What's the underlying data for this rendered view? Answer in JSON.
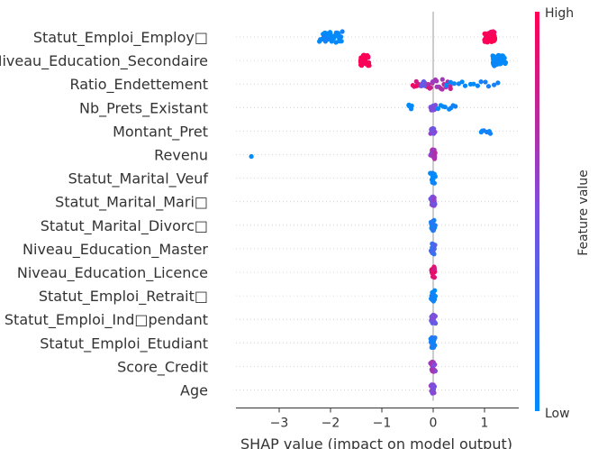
{
  "chart_data": {
    "type": "scatter",
    "subtype": "shap-beeswarm",
    "title": "",
    "xlabel": "SHAP value (impact on model output)",
    "xlim": [
      -3.7,
      1.7
    ],
    "x_ticks": [
      "−3",
      "−2",
      "−1",
      "0",
      "1"
    ],
    "x_tick_values": [
      -3,
      -2,
      -1,
      0,
      1
    ],
    "colorbar": {
      "label": "Feature value",
      "high": "High",
      "low": "Low"
    },
    "colors": {
      "low": "#008bfb",
      "high": "#ff0052"
    },
    "features": [
      {
        "name": "Statut_Emploi_Employ□",
        "groups": [
          {
            "min": -2.2,
            "max": -1.77,
            "n": 40,
            "level": 0.0
          },
          {
            "min": 1.0,
            "max": 1.2,
            "n": 50,
            "level": 1.0
          }
        ]
      },
      {
        "name": "Niveau_Education_Secondaire",
        "groups": [
          {
            "min": -1.42,
            "max": -1.25,
            "n": 45,
            "level": 1.0
          },
          {
            "min": 1.15,
            "max": 1.4,
            "n": 45,
            "level": 0.0
          }
        ]
      },
      {
        "name": "Ratio_Endettement",
        "groups": [
          {
            "min": -0.4,
            "max": -0.1,
            "n": 12,
            "level": 0.9
          },
          {
            "min": -0.22,
            "max": -0.15,
            "n": 10,
            "level": 0.4
          },
          {
            "min": -0.1,
            "max": 0.35,
            "n": 18,
            "level": 0.7
          },
          {
            "min": 0.25,
            "max": 1.25,
            "n": 14,
            "level": 0.05
          }
        ]
      },
      {
        "name": "Nb_Prets_Existant",
        "groups": [
          {
            "min": -0.47,
            "max": -0.43,
            "n": 6,
            "level": 0.0
          },
          {
            "min": -0.05,
            "max": 0.03,
            "n": 14,
            "level": 0.45
          },
          {
            "min": 0.1,
            "max": 0.45,
            "n": 8,
            "level": 0.05
          }
        ]
      },
      {
        "name": "Montant_Pret",
        "groups": [
          {
            "min": -0.04,
            "max": 0.02,
            "n": 14,
            "level": 0.5
          },
          {
            "min": 0.92,
            "max": 1.12,
            "n": 6,
            "level": 0.05
          }
        ]
      },
      {
        "name": "Revenu",
        "groups": [
          {
            "min": -3.55,
            "max": -3.53,
            "n": 1,
            "level": 0.0
          },
          {
            "min": -0.04,
            "max": 0.03,
            "n": 18,
            "level": 0.65
          }
        ]
      },
      {
        "name": "Statut_Marital_Veuf",
        "groups": [
          {
            "min": -0.04,
            "max": 0.03,
            "n": 18,
            "level": 0.0
          }
        ]
      },
      {
        "name": "Statut_Marital_Mari□",
        "groups": [
          {
            "min": -0.04,
            "max": 0.03,
            "n": 18,
            "level": 0.5
          }
        ]
      },
      {
        "name": "Statut_Marital_Divorc□",
        "groups": [
          {
            "min": -0.04,
            "max": 0.03,
            "n": 18,
            "level": 0.1
          }
        ]
      },
      {
        "name": "Niveau_Education_Master",
        "groups": [
          {
            "min": -0.04,
            "max": 0.03,
            "n": 18,
            "level": 0.25
          }
        ]
      },
      {
        "name": "Niveau_Education_Licence",
        "groups": [
          {
            "min": -0.04,
            "max": 0.03,
            "n": 18,
            "level": 0.9
          }
        ]
      },
      {
        "name": "Statut_Emploi_Retrait□",
        "groups": [
          {
            "min": -0.04,
            "max": 0.03,
            "n": 18,
            "level": 0.05
          }
        ]
      },
      {
        "name": "Statut_Emploi_Ind□pendant",
        "groups": [
          {
            "min": -0.04,
            "max": 0.03,
            "n": 18,
            "level": 0.45
          }
        ]
      },
      {
        "name": "Statut_Emploi_Etudiant",
        "groups": [
          {
            "min": -0.04,
            "max": 0.03,
            "n": 18,
            "level": 0.1
          }
        ]
      },
      {
        "name": "Score_Credit",
        "groups": [
          {
            "min": -0.04,
            "max": 0.03,
            "n": 18,
            "level": 0.6
          }
        ]
      },
      {
        "name": "Age",
        "groups": [
          {
            "min": -0.04,
            "max": 0.03,
            "n": 18,
            "level": 0.55
          }
        ]
      }
    ]
  }
}
